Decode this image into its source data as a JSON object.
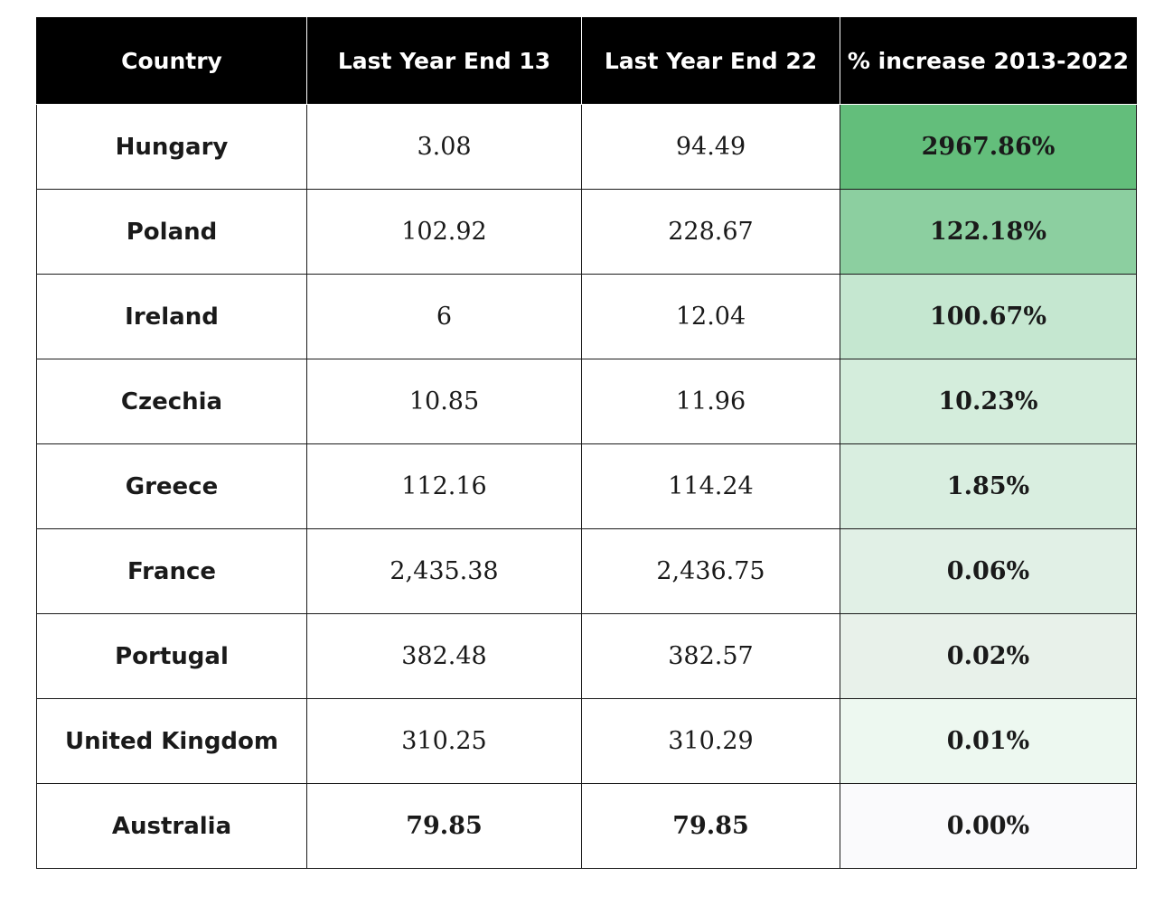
{
  "chart_data": {
    "type": "table",
    "columns": [
      "Country",
      "Last Year End 13",
      "Last Year End 22",
      "% increase 2013-2022"
    ],
    "rows": [
      {
        "country": "Hungary",
        "end13": "3.08",
        "end22": "94.49",
        "pct": "2967.86%",
        "pct_color": "#63be7b",
        "bold_values": false
      },
      {
        "country": "Poland",
        "end13": "102.92",
        "end22": "228.67",
        "pct": "122.18%",
        "pct_color": "#8ccfa0",
        "bold_values": false
      },
      {
        "country": "Ireland",
        "end13": "6",
        "end22": "12.04",
        "pct": "100.67%",
        "pct_color": "#c5e7d0",
        "bold_values": false
      },
      {
        "country": "Czechia",
        "end13": "10.85",
        "end22": "11.96",
        "pct": "10.23%",
        "pct_color": "#d4eddc",
        "bold_values": false
      },
      {
        "country": "Greece",
        "end13": "112.16",
        "end22": "114.24",
        "pct": "1.85%",
        "pct_color": "#d9eee0",
        "bold_values": false
      },
      {
        "country": "France",
        "end13": "2,435.38",
        "end22": "2,436.75",
        "pct": "0.06%",
        "pct_color": "#e1f0e6",
        "bold_values": false
      },
      {
        "country": "Portugal",
        "end13": "382.48",
        "end22": "382.57",
        "pct": "0.02%",
        "pct_color": "#e8f1ea",
        "bold_values": false
      },
      {
        "country": "United Kingdom",
        "end13": "310.25",
        "end22": "310.29",
        "pct": "0.01%",
        "pct_color": "#edf8f0",
        "bold_values": false
      },
      {
        "country": "Australia",
        "end13": "79.85",
        "end22": "79.85",
        "pct": "0.00%",
        "pct_color": "#fafafc",
        "bold_values": true
      }
    ]
  }
}
